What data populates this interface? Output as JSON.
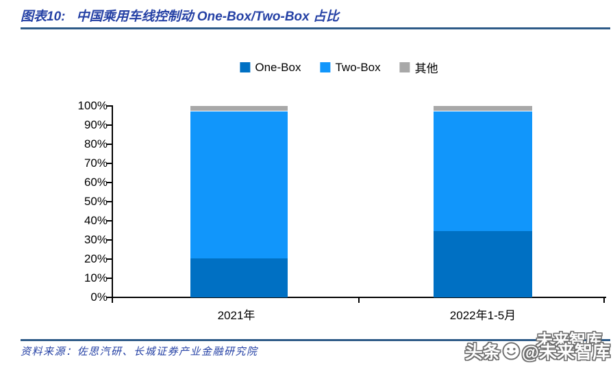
{
  "header": {
    "tag": "图表10:",
    "title": "中国乘用车线控制动 One-Box/Two-Box 占比"
  },
  "chart_data": {
    "type": "bar",
    "stacked": true,
    "title": "中国乘用车线控制动 One-Box/Two-Box 占比",
    "categories": [
      "2021年",
      "2022年1-5月"
    ],
    "series": [
      {
        "name": "One-Box",
        "color": "#0070C3",
        "values": [
          20.5,
          34.5
        ]
      },
      {
        "name": "Two-Box",
        "color": "#1196FB",
        "values": [
          76.5,
          62.5
        ]
      },
      {
        "name": "其他",
        "color": "#A8A8A8",
        "values": [
          3.0,
          3.0
        ]
      }
    ],
    "xlabel": "",
    "ylabel": "",
    "ylim": [
      0,
      100
    ],
    "ytick_step": 10,
    "ytick_suffix": "%",
    "grid": false,
    "legend_position": "top"
  },
  "footer": {
    "source": "资料来源：佐思汽研、长城证券产业金融研究院"
  },
  "watermark": {
    "prefix": "头条",
    "suffix": "@未来智库",
    "ghost": "未来智库",
    "logo": "smiley-icon"
  },
  "colors": {
    "accent_title": "#2541A5",
    "rule": "#2D5A87",
    "axis": "#000000"
  }
}
